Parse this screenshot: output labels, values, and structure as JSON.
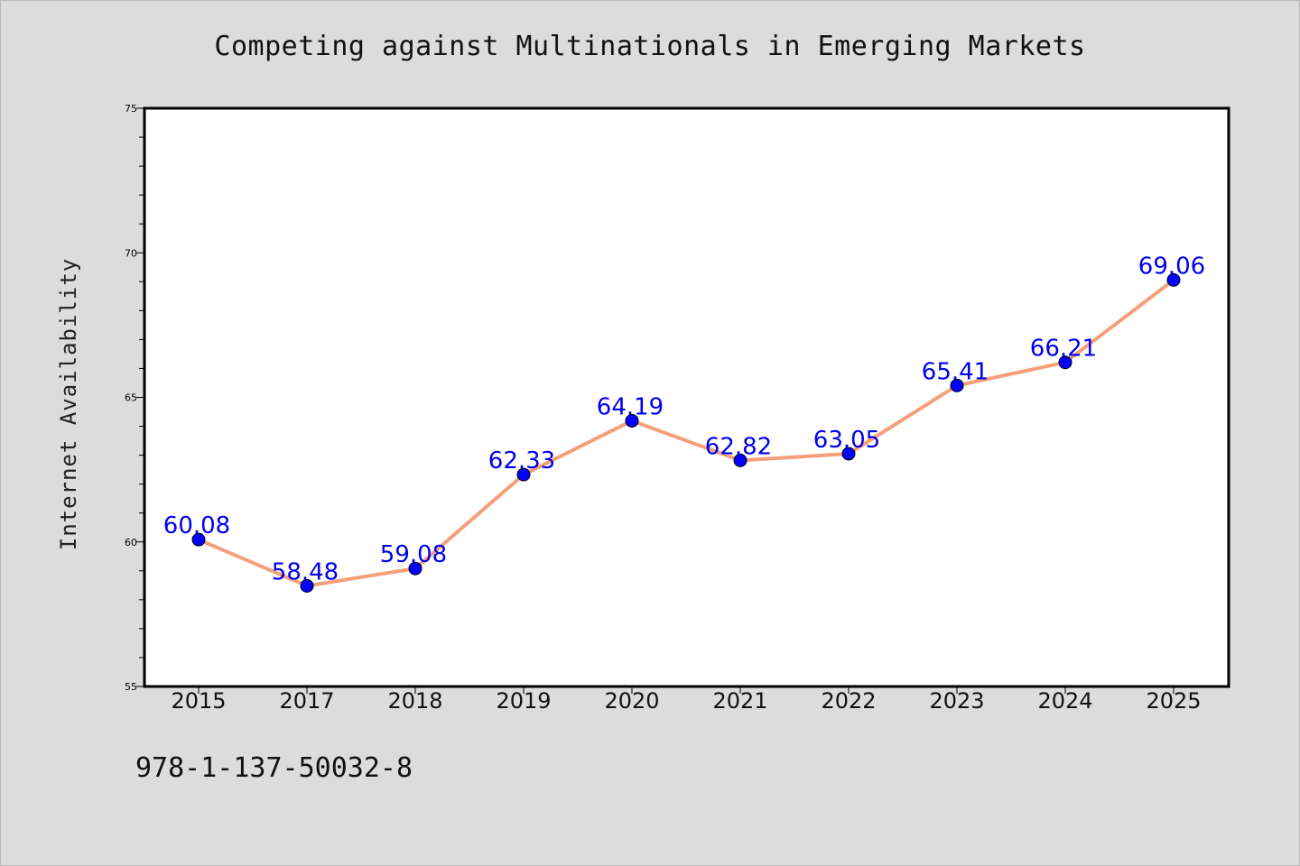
{
  "chart_data": {
    "type": "line",
    "title": "Competing against Multinationals in Emerging Markets",
    "xlabel": "",
    "ylabel": "Internet Availability",
    "categories": [
      "2015",
      "2017",
      "2018",
      "2019",
      "2020",
      "2021",
      "2022",
      "2023",
      "2024",
      "2025"
    ],
    "series": [
      {
        "values": [
          60.08,
          58.48,
          59.08,
          62.33,
          64.19,
          62.82,
          63.05,
          65.41,
          66.21,
          69.06
        ],
        "line_color": "#f4a07a",
        "marker_color": "#0000ff",
        "label_color": "#0000ee"
      }
    ],
    "ylim": [
      55,
      75
    ],
    "yticks": [
      55,
      60,
      65,
      70,
      75
    ],
    "grid": false,
    "data_labels": true
  },
  "footer": {
    "isbn": "978-1-137-50032-8"
  }
}
